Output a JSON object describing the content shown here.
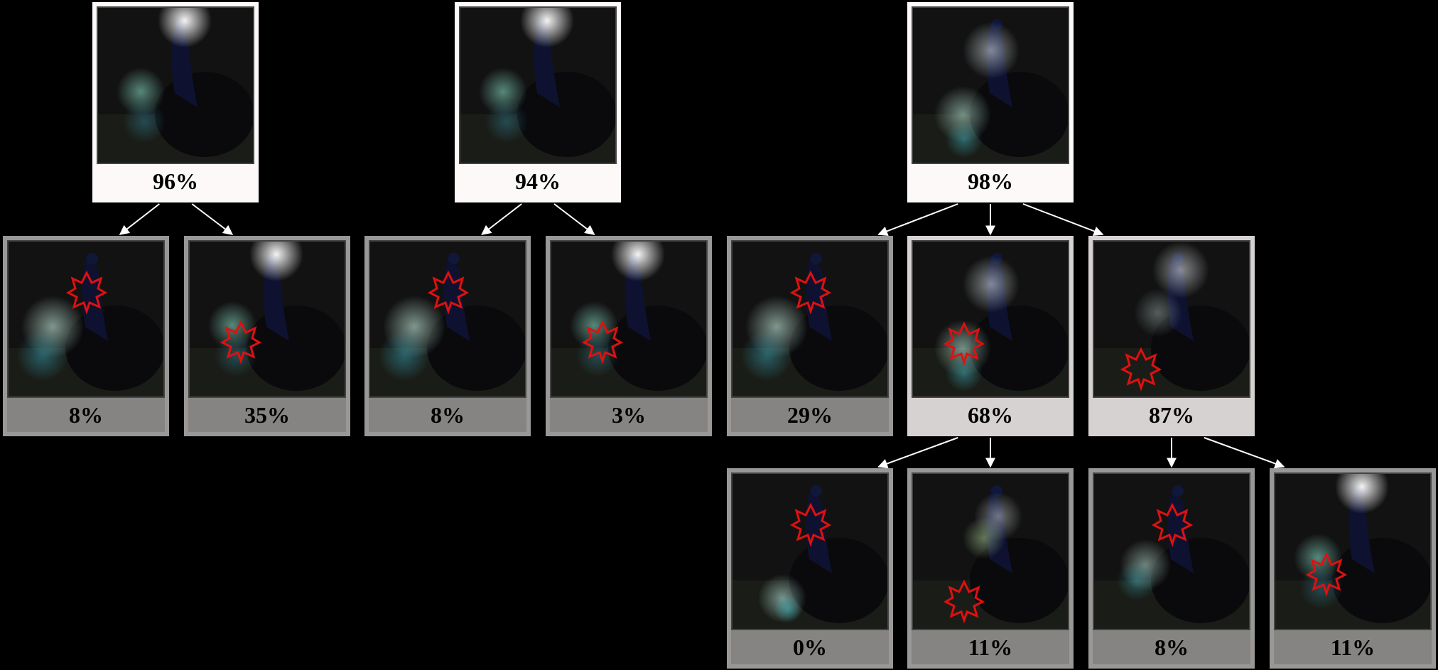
{
  "colors": {
    "background": "#000000",
    "edge": "#ffffff",
    "mask_outline": "#e01010",
    "node_high": "#fcf9f8",
    "node_mid": "#d6d2d1",
    "node_low": "#868483"
  },
  "nodes": [
    {
      "id": "t1-root",
      "label": "96%",
      "tone": "l0",
      "image": {
        "glow": "head-high",
        "outline": null
      }
    },
    {
      "id": "t1-c1",
      "label": "8%",
      "tone": "l2",
      "image": {
        "glow": "tail-left",
        "outline": "head"
      }
    },
    {
      "id": "t1-c2",
      "label": "35%",
      "tone": "l2",
      "image": {
        "glow": "head-high",
        "outline": "body"
      }
    },
    {
      "id": "t2-root",
      "label": "94%",
      "tone": "l0",
      "image": {
        "glow": "head-high",
        "outline": null
      }
    },
    {
      "id": "t2-c1",
      "label": "8%",
      "tone": "l2",
      "image": {
        "glow": "tail-left",
        "outline": "head"
      }
    },
    {
      "id": "t2-c2",
      "label": "3%",
      "tone": "l2",
      "image": {
        "glow": "head-high",
        "outline": "body"
      }
    },
    {
      "id": "t3-root",
      "label": "98%",
      "tone": "l0",
      "image": {
        "glow": "neck-tail",
        "outline": null
      }
    },
    {
      "id": "t3-c1",
      "label": "29%",
      "tone": "l2",
      "image": {
        "glow": "tail-left",
        "outline": "head"
      }
    },
    {
      "id": "t3-c2",
      "label": "68%",
      "tone": "l1",
      "image": {
        "glow": "neck-tail",
        "outline": "tail"
      }
    },
    {
      "id": "t3-c3",
      "label": "87%",
      "tone": "l1",
      "image": {
        "glow": "neck-high",
        "outline": "lower"
      }
    },
    {
      "id": "t3-g1",
      "label": "0%",
      "tone": "l2",
      "image": {
        "glow": "tail-low",
        "outline": "head"
      }
    },
    {
      "id": "t3-g2",
      "label": "11%",
      "tone": "l2",
      "image": {
        "glow": "neck-green",
        "outline": "bottom"
      }
    },
    {
      "id": "t3-g3",
      "label": "8%",
      "tone": "l2",
      "image": {
        "glow": "tail-mid",
        "outline": "head"
      }
    },
    {
      "id": "t3-g4",
      "label": "11%",
      "tone": "l2",
      "image": {
        "glow": "head-high",
        "outline": "body"
      }
    }
  ],
  "edges": [
    [
      "t1-root",
      "t1-c1"
    ],
    [
      "t1-root",
      "t1-c2"
    ],
    [
      "t2-root",
      "t2-c1"
    ],
    [
      "t2-root",
      "t2-c2"
    ],
    [
      "t3-root",
      "t3-c1"
    ],
    [
      "t3-root",
      "t3-c2"
    ],
    [
      "t3-root",
      "t3-c3"
    ],
    [
      "t3-c2",
      "t3-g1"
    ],
    [
      "t3-c2",
      "t3-g2"
    ],
    [
      "t3-c3",
      "t3-g3"
    ],
    [
      "t3-c3",
      "t3-g4"
    ]
  ]
}
